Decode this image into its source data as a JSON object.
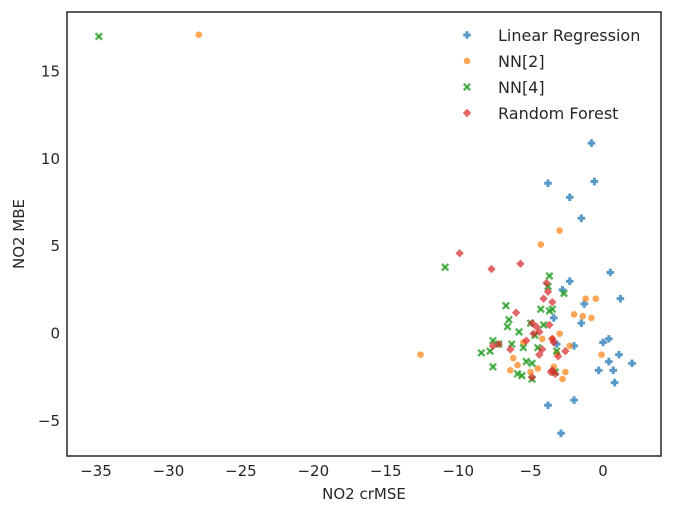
{
  "chart_data": {
    "type": "scatter",
    "title": "",
    "xlabel": "NO2 crMSE",
    "ylabel": "NO2 MBE",
    "xlim": [
      -37,
      4
    ],
    "ylim": [
      -7,
      18.4
    ],
    "xticks": [
      -35,
      -30,
      -25,
      -20,
      -15,
      -10,
      -5,
      0
    ],
    "yticks": [
      -5,
      0,
      5,
      10,
      15
    ],
    "grid": false,
    "legend_position": "top-right",
    "series": [
      {
        "name": "Linear Regression",
        "marker": "plus",
        "color": "#1f77b4",
        "points": [
          [
            -0.8,
            10.9
          ],
          [
            -3.8,
            8.6
          ],
          [
            -0.6,
            8.7
          ],
          [
            -2.3,
            7.8
          ],
          [
            -1.5,
            6.6
          ],
          [
            -2.3,
            3.0
          ],
          [
            0.5,
            3.5
          ],
          [
            1.2,
            2.0
          ],
          [
            -2.8,
            2.5
          ],
          [
            -1.3,
            1.7
          ],
          [
            -3.4,
            0.9
          ],
          [
            -1.5,
            0.6
          ],
          [
            0.0,
            -0.5
          ],
          [
            0.4,
            -0.3
          ],
          [
            -2.0,
            -0.7
          ],
          [
            1.1,
            -1.2
          ],
          [
            2.0,
            -1.7
          ],
          [
            0.4,
            -1.6
          ],
          [
            0.7,
            -2.1
          ],
          [
            -0.3,
            -2.1
          ],
          [
            0.8,
            -2.8
          ],
          [
            -2.0,
            -3.8
          ],
          [
            -3.8,
            -4.1
          ],
          [
            -2.9,
            -5.7
          ],
          [
            -3.2,
            -0.6
          ]
        ]
      },
      {
        "name": "NN[2]",
        "marker": "circle",
        "color": "#ff7f0e",
        "points": [
          [
            -27.9,
            17.1
          ],
          [
            -4.3,
            5.1
          ],
          [
            -3.0,
            5.9
          ],
          [
            -12.6,
            -1.2
          ],
          [
            -1.2,
            2.0
          ],
          [
            -0.5,
            2.0
          ],
          [
            -2.0,
            1.1
          ],
          [
            -1.4,
            1.0
          ],
          [
            -0.8,
            0.9
          ],
          [
            -3.0,
            0.0
          ],
          [
            -4.2,
            -0.3
          ],
          [
            -3.5,
            -0.3
          ],
          [
            -2.3,
            -0.7
          ],
          [
            -3.2,
            -1.1
          ],
          [
            -5.5,
            -0.5
          ],
          [
            -6.2,
            -1.4
          ],
          [
            -5.9,
            -1.8
          ],
          [
            -6.4,
            -2.1
          ],
          [
            -4.5,
            -2.0
          ],
          [
            -2.8,
            -2.6
          ],
          [
            -2.6,
            -2.2
          ],
          [
            -0.1,
            -1.2
          ],
          [
            -3.4,
            -1.9
          ],
          [
            -5.0,
            -2.2
          ]
        ]
      },
      {
        "name": "NN[4]",
        "marker": "x",
        "color": "#2ca02c",
        "points": [
          [
            -34.8,
            17.0
          ],
          [
            -10.9,
            3.8
          ],
          [
            -3.7,
            3.3
          ],
          [
            -3.8,
            2.7
          ],
          [
            -2.7,
            2.3
          ],
          [
            -6.7,
            1.6
          ],
          [
            -4.3,
            1.4
          ],
          [
            -3.7,
            1.3
          ],
          [
            -3.5,
            1.4
          ],
          [
            -6.5,
            0.8
          ],
          [
            -5.0,
            0.6
          ],
          [
            -4.1,
            0.5
          ],
          [
            -6.6,
            0.4
          ],
          [
            -5.8,
            0.1
          ],
          [
            -4.7,
            -0.1
          ],
          [
            -7.6,
            -0.4
          ],
          [
            -7.2,
            -0.6
          ],
          [
            -6.3,
            -0.6
          ],
          [
            -5.5,
            -0.8
          ],
          [
            -4.5,
            -0.8
          ],
          [
            -7.8,
            -1.0
          ],
          [
            -8.4,
            -1.1
          ],
          [
            -3.2,
            -1.0
          ],
          [
            -5.3,
            -1.6
          ],
          [
            -4.9,
            -1.7
          ],
          [
            -7.6,
            -1.9
          ],
          [
            -5.9,
            -2.3
          ],
          [
            -5.6,
            -2.4
          ],
          [
            -4.9,
            -2.6
          ],
          [
            -3.3,
            -2.2
          ]
        ]
      },
      {
        "name": "Random Forest",
        "marker": "diamond",
        "color": "#d62728",
        "points": [
          [
            -9.9,
            4.6
          ],
          [
            -5.7,
            4.0
          ],
          [
            -7.7,
            3.7
          ],
          [
            -3.9,
            2.9
          ],
          [
            -3.8,
            2.4
          ],
          [
            -4.1,
            2.0
          ],
          [
            -3.5,
            1.8
          ],
          [
            -6.0,
            1.2
          ],
          [
            -4.9,
            0.6
          ],
          [
            -4.6,
            0.4
          ],
          [
            -3.7,
            0.5
          ],
          [
            -4.4,
            0.1
          ],
          [
            -4.8,
            0.0
          ],
          [
            -3.5,
            -0.3
          ],
          [
            -3.4,
            -0.5
          ],
          [
            -7.2,
            -0.6
          ],
          [
            -7.6,
            -0.7
          ],
          [
            -5.3,
            -0.4
          ],
          [
            -6.4,
            -0.9
          ],
          [
            -4.2,
            -0.9
          ],
          [
            -2.6,
            -1.0
          ],
          [
            -4.4,
            -1.2
          ],
          [
            -3.1,
            -1.3
          ],
          [
            -3.6,
            -2.2
          ],
          [
            -3.3,
            -2.3
          ],
          [
            -3.5,
            -2.1
          ],
          [
            -4.9,
            -2.5
          ]
        ]
      }
    ]
  }
}
